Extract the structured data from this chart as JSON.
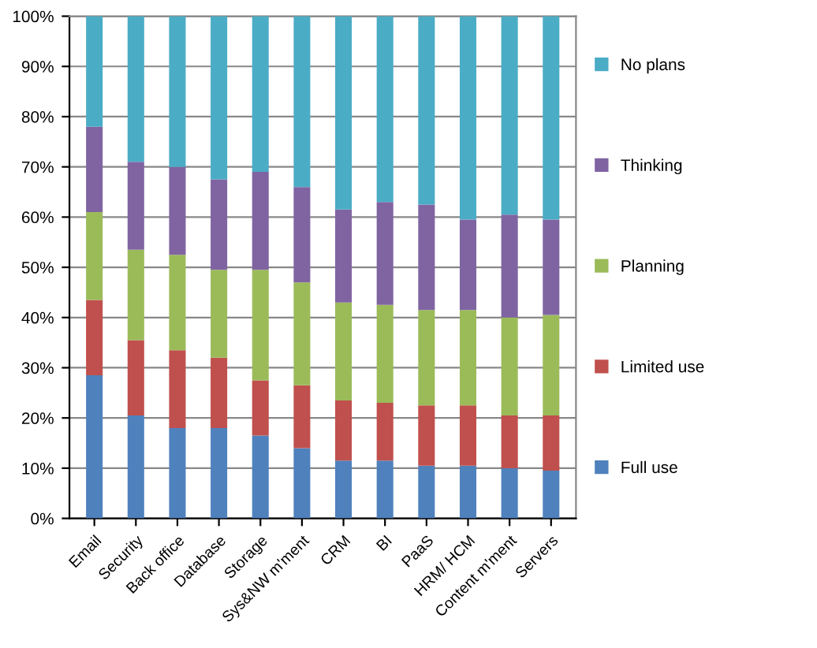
{
  "chart_data": {
    "type": "bar",
    "stacked": true,
    "categories": [
      "Email",
      "Security",
      "Back office",
      "Database",
      "Storage",
      "Sys&NW m'ment",
      "CRM",
      "BI",
      "PaaS",
      "HRM/ HCM",
      "Content m'ment",
      "Servers"
    ],
    "series": [
      {
        "name": "Full use",
        "color": "#4f81bd",
        "values": [
          28.5,
          20.5,
          18,
          18,
          16.5,
          14,
          11.5,
          11.5,
          10.5,
          10.5,
          10,
          9.5
        ]
      },
      {
        "name": "Limited use",
        "color": "#c0504d",
        "values": [
          15,
          15,
          15.5,
          14,
          11,
          12.5,
          12,
          11.5,
          12,
          12,
          10.5,
          11
        ]
      },
      {
        "name": "Planning",
        "color": "#9bbb59",
        "values": [
          17.5,
          18,
          19,
          17.5,
          22,
          20.5,
          19.5,
          19.5,
          19,
          19,
          19.5,
          20
        ]
      },
      {
        "name": "Thinking",
        "color": "#8064a2",
        "values": [
          17,
          17.5,
          17.5,
          18,
          19.5,
          19,
          18.5,
          20.5,
          21,
          18,
          20.5,
          19
        ]
      },
      {
        "name": "No plans",
        "color": "#4bacc6",
        "values": [
          22,
          29,
          30,
          32.5,
          31,
          34,
          38.5,
          37,
          37.5,
          40.5,
          39.5,
          40.5
        ]
      }
    ],
    "ylim": [
      0,
      100
    ],
    "yticks": [
      {
        "value": 0,
        "label": "0%"
      },
      {
        "value": 10,
        "label": "10%"
      },
      {
        "value": 20,
        "label": "20%"
      },
      {
        "value": 30,
        "label": "30%"
      },
      {
        "value": 40,
        "label": "40%"
      },
      {
        "value": 50,
        "label": "50%"
      },
      {
        "value": 60,
        "label": "60%"
      },
      {
        "value": 70,
        "label": "70%"
      },
      {
        "value": 80,
        "label": "80%"
      },
      {
        "value": 90,
        "label": "90%"
      },
      {
        "value": 100,
        "label": "100%"
      }
    ],
    "grid": "y",
    "legend": "right"
  }
}
